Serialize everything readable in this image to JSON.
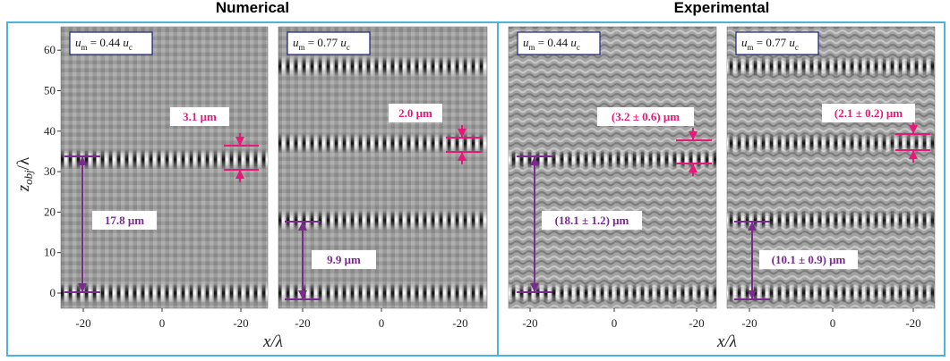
{
  "titles": [
    "Numerical",
    "Experimental"
  ],
  "y_axis": {
    "label": "z",
    "label_sub": "obj",
    "label_rest": "/λ",
    "ticks": [
      "60",
      "50",
      "40",
      "30",
      "20",
      "10",
      "0"
    ]
  },
  "x_axis_labels": [
    "x/λ",
    "x/λ"
  ],
  "panels": [
    {
      "condition": {
        "symbol": "u",
        "sub": "m",
        "value": " = 0.44 ",
        "unit": "u",
        "unit_sub": "c"
      },
      "x_ticks": [
        "-20",
        "0",
        "-20"
      ],
      "small_spacing": "3.1 μm",
      "large_spacing": "17.8 μm"
    },
    {
      "condition": {
        "symbol": "u",
        "sub": "m",
        "value": " = 0.77 ",
        "unit": "u",
        "unit_sub": "c"
      },
      "x_ticks": [
        "-20",
        "0",
        "-20"
      ],
      "small_spacing": "2.0 μm",
      "large_spacing": "9.9 μm"
    },
    {
      "condition": {
        "symbol": "u",
        "sub": "m",
        "value": " = 0.44 ",
        "unit": "u",
        "unit_sub": "c"
      },
      "x_ticks": [
        "-20",
        "0",
        "-20"
      ],
      "small_spacing": "(3.2 ± 0.6) μm",
      "large_spacing": "(18.1 ± 1.2) μm"
    },
    {
      "condition": {
        "symbol": "u",
        "sub": "m",
        "value": " = 0.77 ",
        "unit": "u",
        "unit_sub": "c"
      },
      "x_ticks": [
        "-20",
        "0",
        "-20"
      ],
      "small_spacing": "(2.1 ± 0.2) μm",
      "large_spacing": "(10.1 ± 0.9) μm"
    }
  ]
}
